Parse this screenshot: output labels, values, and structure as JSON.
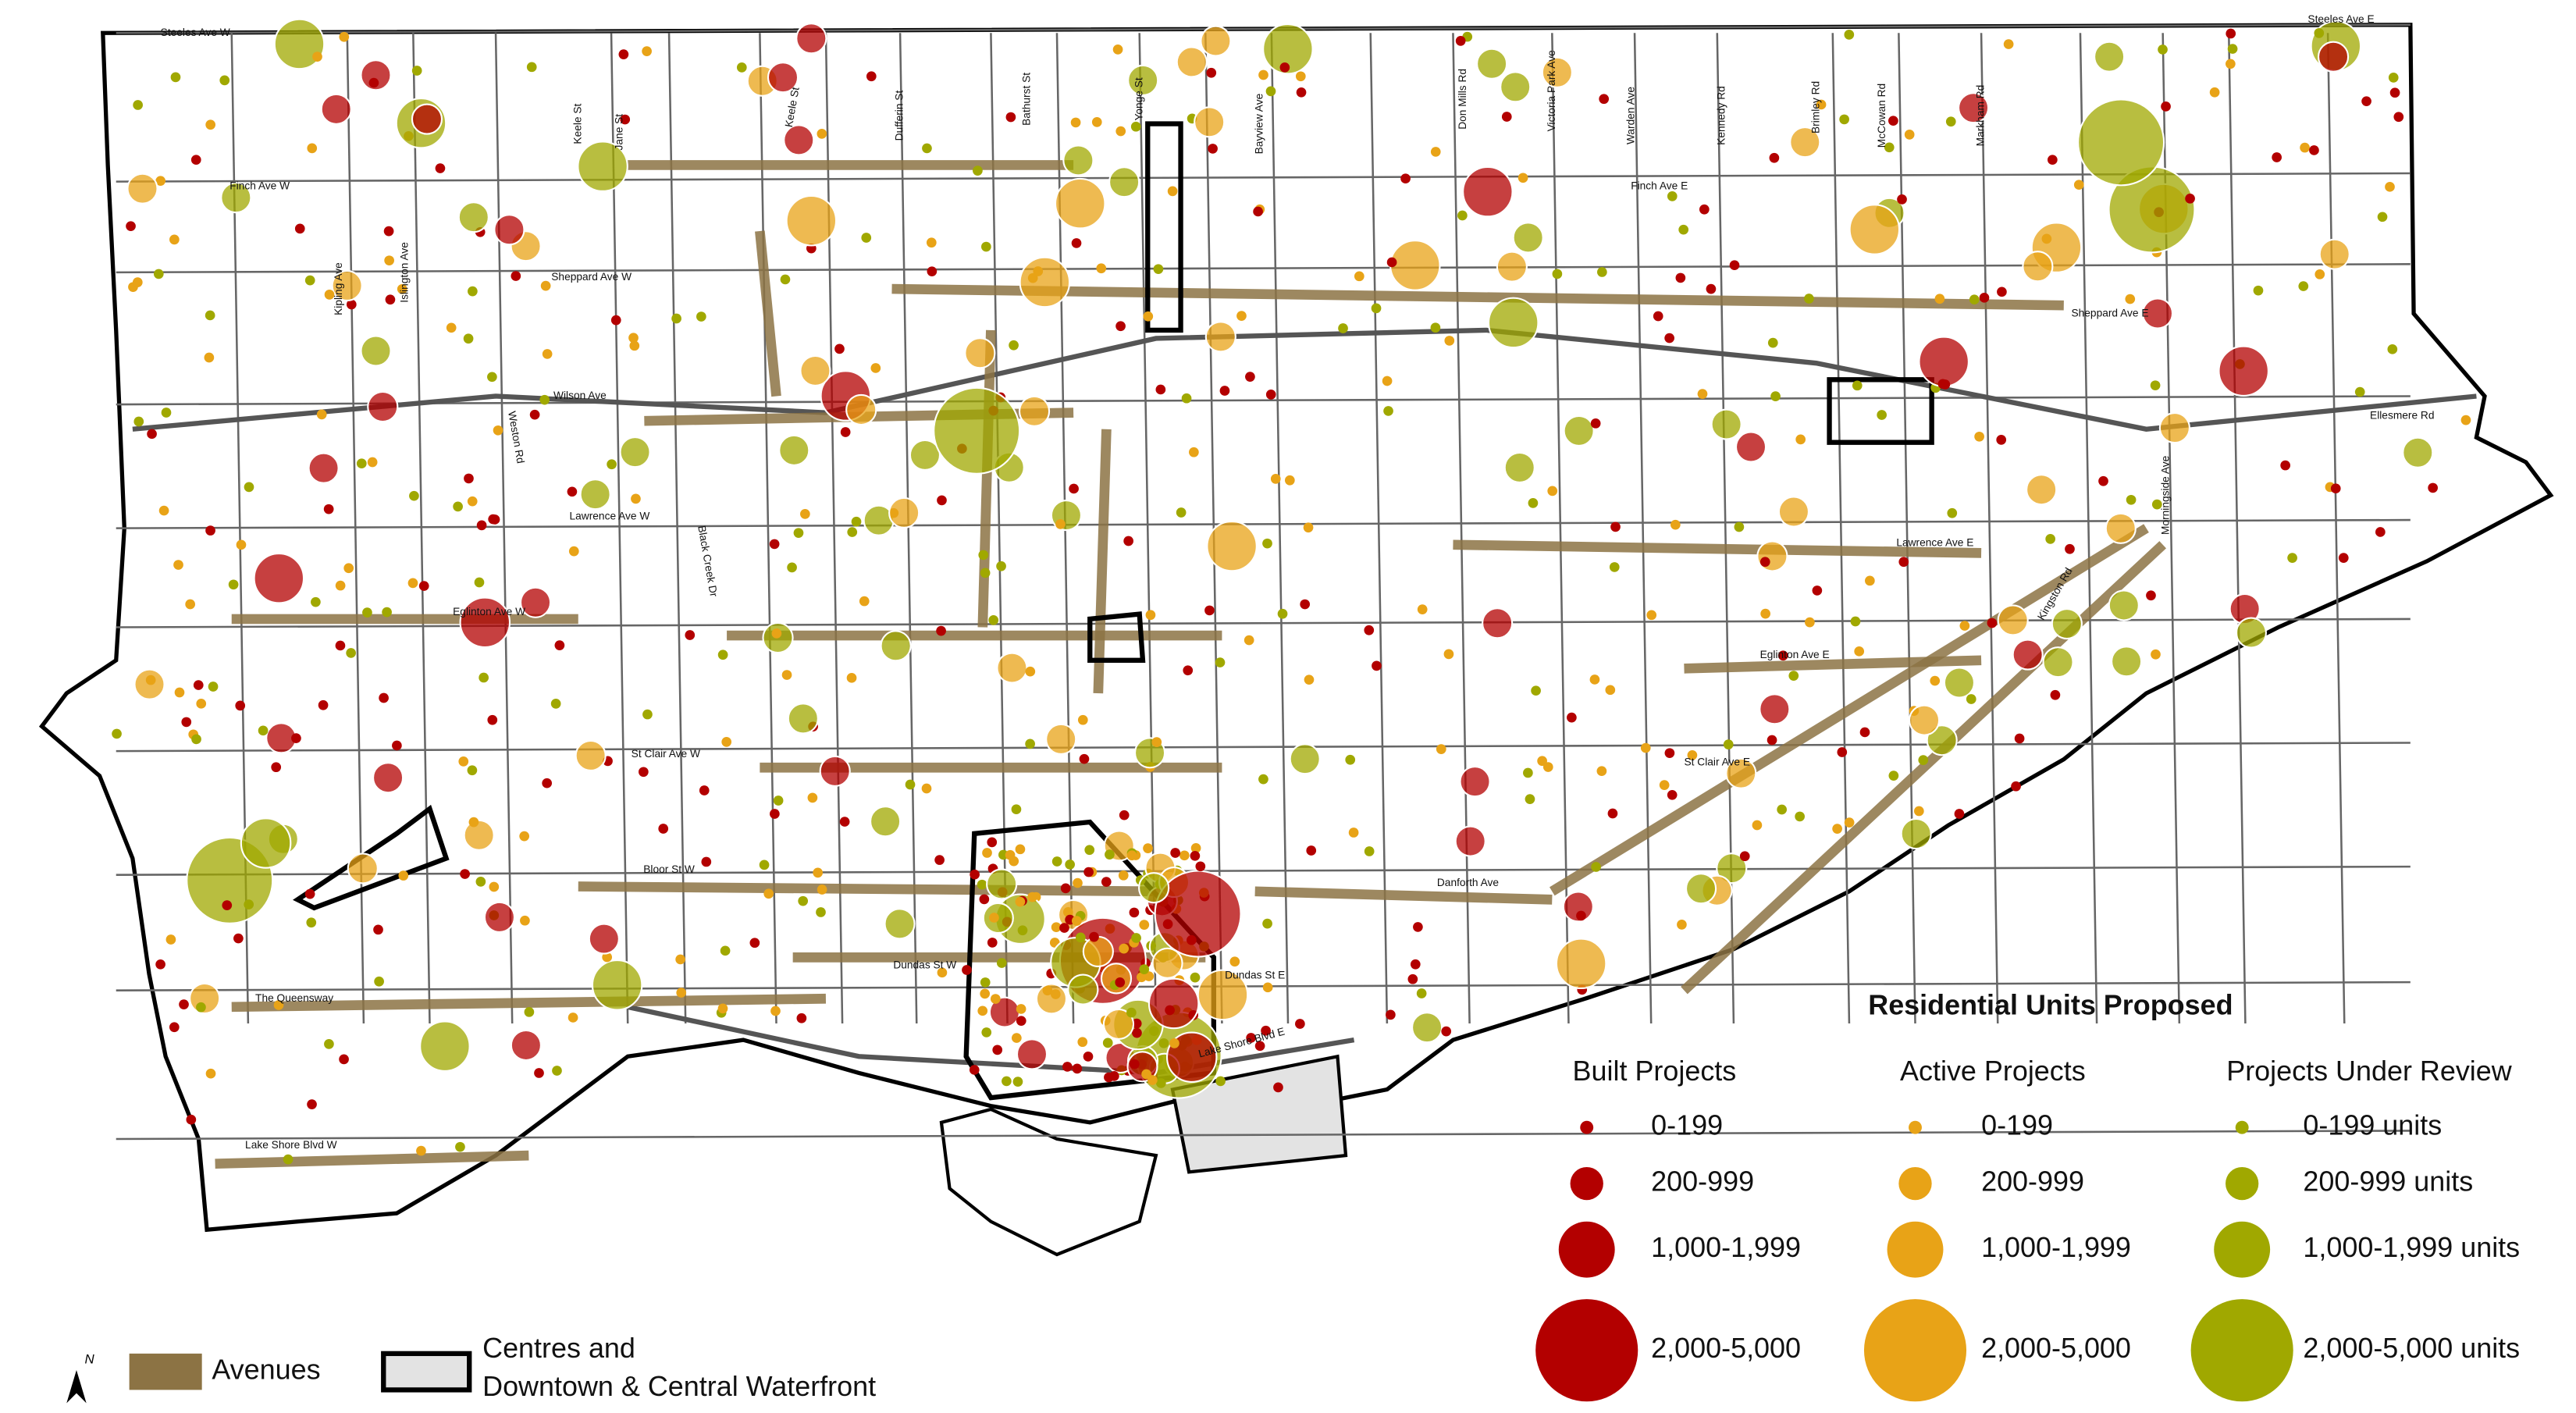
{
  "map": {
    "street_labels": [
      "Steeles Ave W",
      "Steeles Ave E",
      "Finch Ave W",
      "Finch Ave E",
      "Sheppard Ave W",
      "Sheppard Ave E",
      "Wilson Ave",
      "Ellesmere Rd",
      "Lawrence Ave W",
      "Lawrence Ave E",
      "Eglinton Ave W",
      "Eglinton Ave E",
      "St Clair Ave W",
      "St Clair Ave E",
      "Bloor St W",
      "Danforth Ave",
      "Dundas St W",
      "Dundas St E",
      "The Queensway",
      "Lake Shore Blvd W",
      "Lake Shore Blvd E",
      "Keele St",
      "Jane St",
      "Keele St",
      "Dufferin St",
      "Bathurst St",
      "Yonge St",
      "Bayview Ave",
      "Don Mills Rd",
      "Victoria Park Ave",
      "Warden Ave",
      "Kennedy Rd",
      "Brimley Rd",
      "McCowan Rd",
      "Markham Rd",
      "Kipling Ave",
      "Islington Ave",
      "Weston Rd",
      "Black Creek Dr",
      "Morningside Ave",
      "Kingston Rd"
    ]
  },
  "legend": {
    "title": "Residential Units Proposed",
    "columns": [
      {
        "heading": "Built Projects",
        "classes": [
          "0-199",
          "200-999",
          "1,000-1,999",
          "2,000-5,000"
        ]
      },
      {
        "heading": "Active Projects",
        "classes": [
          "0-199",
          "200-999",
          "1,000-1,999",
          "2,000-5,000"
        ]
      },
      {
        "heading": "Projects Under Review",
        "classes": [
          "0-199 units",
          "200-999 units",
          "1,000-1,999 units",
          "2,000-5,000 units"
        ]
      }
    ],
    "avenues": "Avenues",
    "centres": [
      "Centres and",
      "Downtown & Central Waterfront"
    ],
    "north": "N"
  }
}
